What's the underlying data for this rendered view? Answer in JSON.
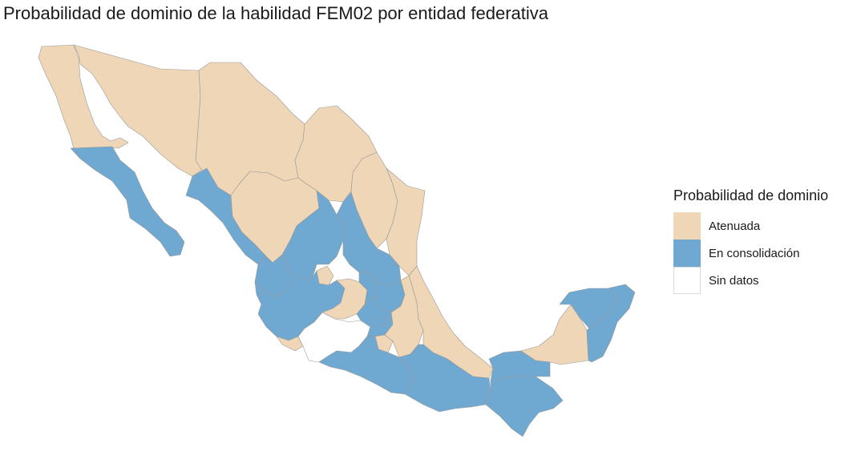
{
  "title": "Probabilidad de dominio de la habilidad FEM02 por entidad federativa",
  "legend": {
    "title": "Probabilidad de dominio",
    "items": [
      {
        "label": "Atenuada",
        "color": "#eed6b7"
      },
      {
        "label": "En consolidación",
        "color": "#6fa8d0"
      },
      {
        "label": "Sin datos",
        "color": "#ffffff"
      }
    ]
  },
  "states": [
    {
      "name": "Baja California",
      "category": "Atenuada"
    },
    {
      "name": "Baja California Sur",
      "category": "En consolidación"
    },
    {
      "name": "Sonora",
      "category": "Atenuada"
    },
    {
      "name": "Chihuahua",
      "category": "Atenuada"
    },
    {
      "name": "Coahuila",
      "category": "Atenuada"
    },
    {
      "name": "Nuevo León",
      "category": "Atenuada"
    },
    {
      "name": "Tamaulipas",
      "category": "Atenuada"
    },
    {
      "name": "Sinaloa",
      "category": "En consolidación"
    },
    {
      "name": "Durango",
      "category": "Atenuada"
    },
    {
      "name": "Zacatecas",
      "category": "En consolidación"
    },
    {
      "name": "San Luis Potosí",
      "category": "En consolidación"
    },
    {
      "name": "Nayarit",
      "category": "En consolidación"
    },
    {
      "name": "Aguascalientes",
      "category": "Atenuada"
    },
    {
      "name": "Jalisco",
      "category": "En consolidación"
    },
    {
      "name": "Colima",
      "category": "Atenuada"
    },
    {
      "name": "Michoacán",
      "category": "Sin datos"
    },
    {
      "name": "Guanajuato",
      "category": "Atenuada"
    },
    {
      "name": "Querétaro",
      "category": "En consolidación"
    },
    {
      "name": "Hidalgo",
      "category": "En consolidación"
    },
    {
      "name": "Estado de México",
      "category": "En consolidación"
    },
    {
      "name": "Ciudad de México",
      "category": "En consolidación"
    },
    {
      "name": "Morelos",
      "category": "Atenuada"
    },
    {
      "name": "Tlaxcala",
      "category": "En consolidación"
    },
    {
      "name": "Puebla",
      "category": "Atenuada"
    },
    {
      "name": "Veracruz",
      "category": "Atenuada"
    },
    {
      "name": "Guerrero",
      "category": "En consolidación"
    },
    {
      "name": "Oaxaca",
      "category": "En consolidación"
    },
    {
      "name": "Chiapas",
      "category": "En consolidación"
    },
    {
      "name": "Tabasco",
      "category": "En consolidación"
    },
    {
      "name": "Campeche",
      "category": "Atenuada"
    },
    {
      "name": "Yucatán",
      "category": "En consolidación"
    },
    {
      "name": "Quintana Roo",
      "category": "En consolidación"
    }
  ]
}
